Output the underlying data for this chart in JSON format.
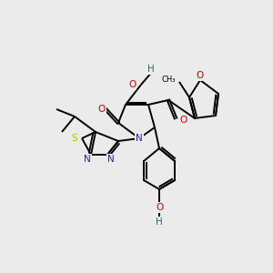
{
  "background_color": "#ebebeb",
  "colors": {
    "C": "#000000",
    "N": "#2222cc",
    "O": "#cc0000",
    "S": "#bbbb00",
    "H": "#336666",
    "bond": "#000000"
  },
  "figsize": [
    3.0,
    3.0
  ],
  "dpi": 100
}
